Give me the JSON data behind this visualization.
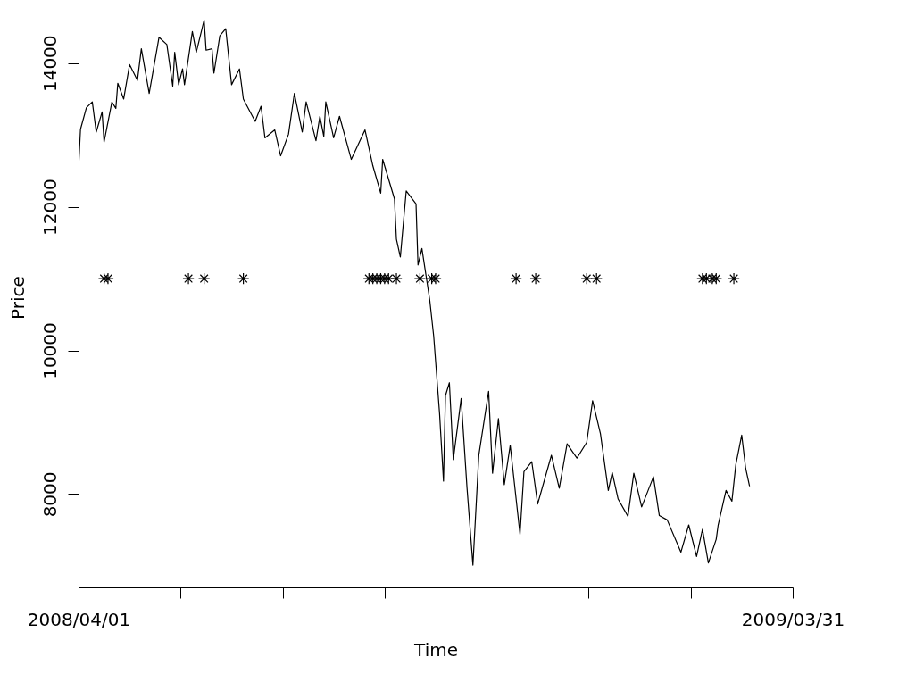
{
  "chart_data": {
    "type": "line",
    "xlabel": "Time",
    "ylabel": "Price",
    "xlim": [
      "2008-04-01",
      "2009-03-31"
    ],
    "xticks": [
      {
        "value": "2008-04-01",
        "label": "2008/04/01"
      },
      {
        "value": "2008-05-23",
        "label": null
      },
      {
        "value": "2008-07-14",
        "label": null
      },
      {
        "value": "2008-09-04",
        "label": null
      },
      {
        "value": "2008-10-26",
        "label": null
      },
      {
        "value": "2008-12-17",
        "label": null
      },
      {
        "value": "2009-02-07",
        "label": null
      },
      {
        "value": "2009-03-31",
        "label": "2009/03/31"
      }
    ],
    "ylim": [
      6700,
      14780
    ],
    "yticks": [
      8000,
      10000,
      12000,
      14000
    ],
    "grid": false,
    "series": [
      {
        "color": "#000000",
        "marker": "none",
        "line_style": "solid",
        "x": [
          "2008-04-01",
          "2008-04-02",
          "2008-04-05",
          "2008-04-08",
          "2008-04-10",
          "2008-04-13",
          "2008-04-14",
          "2008-04-18",
          "2008-04-20",
          "2008-04-21",
          "2008-04-24",
          "2008-04-27",
          "2008-05-01",
          "2008-05-03",
          "2008-05-07",
          "2008-05-12",
          "2008-05-16",
          "2008-05-19",
          "2008-05-20",
          "2008-05-22",
          "2008-05-24",
          "2008-05-25",
          "2008-05-29",
          "2008-05-31",
          "2008-06-04",
          "2008-06-05",
          "2008-06-08",
          "2008-06-09",
          "2008-06-12",
          "2008-06-15",
          "2008-06-18",
          "2008-06-22",
          "2008-06-24",
          "2008-06-30",
          "2008-07-03",
          "2008-07-05",
          "2008-07-10",
          "2008-07-13",
          "2008-07-17",
          "2008-07-20",
          "2008-07-24",
          "2008-07-26",
          "2008-07-31",
          "2008-08-02",
          "2008-08-04",
          "2008-08-05",
          "2008-08-09",
          "2008-08-12",
          "2008-08-18",
          "2008-08-25",
          "2008-08-29",
          "2008-09-02",
          "2008-09-03",
          "2008-09-09",
          "2008-09-10",
          "2008-09-12",
          "2008-09-15",
          "2008-09-20",
          "2008-09-21",
          "2008-09-23",
          "2008-09-27",
          "2008-09-29",
          "2008-10-02",
          "2008-10-04",
          "2008-10-05",
          "2008-10-07",
          "2008-10-09",
          "2008-10-13",
          "2008-10-16",
          "2008-10-19",
          "2008-10-22",
          "2008-10-27",
          "2008-10-29",
          "2008-11-01",
          "2008-11-04",
          "2008-11-07",
          "2008-11-12",
          "2008-11-14",
          "2008-11-18",
          "2008-11-21",
          "2008-11-28",
          "2008-12-02",
          "2008-12-06",
          "2008-12-11",
          "2008-12-16",
          "2008-12-19",
          "2008-12-23",
          "2008-12-27",
          "2008-12-29",
          "2009-01-01",
          "2009-01-06",
          "2009-01-09",
          "2009-01-13",
          "2009-01-19",
          "2009-01-22",
          "2009-01-26",
          "2009-02-02",
          "2009-02-06",
          "2009-02-10",
          "2009-02-13",
          "2009-02-16",
          "2009-02-20",
          "2009-02-21",
          "2009-02-25",
          "2009-02-28",
          "2009-03-02",
          "2009-03-05",
          "2009-03-07",
          "2009-03-09"
        ],
        "values": [
          12540,
          13080,
          13380,
          13460,
          13040,
          13320,
          12900,
          13460,
          13370,
          13720,
          13500,
          13980,
          13760,
          14200,
          13580,
          14360,
          14260,
          13680,
          14150,
          13700,
          13920,
          13700,
          14440,
          14150,
          14600,
          14180,
          14200,
          13860,
          14380,
          14480,
          13700,
          13920,
          13500,
          13190,
          13400,
          12960,
          13070,
          12710,
          13010,
          13580,
          13040,
          13460,
          12920,
          13260,
          12980,
          13460,
          12960,
          13260,
          12660,
          13070,
          12570,
          12190,
          12660,
          12110,
          11550,
          11300,
          12220,
          12040,
          11190,
          11420,
          10700,
          10200,
          9120,
          8180,
          9370,
          9550,
          8480,
          9330,
          8080,
          7010,
          8540,
          9430,
          8290,
          9050,
          8130,
          8680,
          7440,
          8310,
          8450,
          7860,
          8540,
          8080,
          8700,
          8500,
          8720,
          9300,
          8840,
          8050,
          8300,
          7930,
          7690,
          8290,
          7820,
          8240,
          7700,
          7640,
          7190,
          7570,
          7130,
          7510,
          7040,
          7370,
          7570,
          8050,
          7900,
          8410,
          8820,
          8360,
          8110
        ]
      },
      {
        "type": "scatter",
        "color": "#000000",
        "marker": "cross",
        "x": [
          "2008-04-14",
          "2008-04-16",
          "2008-05-27",
          "2008-06-04",
          "2008-06-24",
          "2008-08-27",
          "2008-08-29",
          "2008-08-31",
          "2008-09-02",
          "2008-09-04",
          "2008-09-06",
          "2008-09-10",
          "2008-09-22",
          "2008-09-28",
          "2008-09-30",
          "2008-11-10",
          "2008-11-20",
          "2008-12-16",
          "2008-12-21",
          "2009-02-13",
          "2009-02-15",
          "2009-02-18",
          "2009-02-20",
          "2009-03-01"
        ],
        "values": [
          11000,
          11000,
          11000,
          11000,
          11000,
          11000,
          11000,
          11000,
          11000,
          11000,
          11000,
          11000,
          11000,
          11000,
          11000,
          11000,
          11000,
          11000,
          11000,
          11000,
          11000,
          11000,
          11000,
          11000
        ]
      }
    ]
  }
}
